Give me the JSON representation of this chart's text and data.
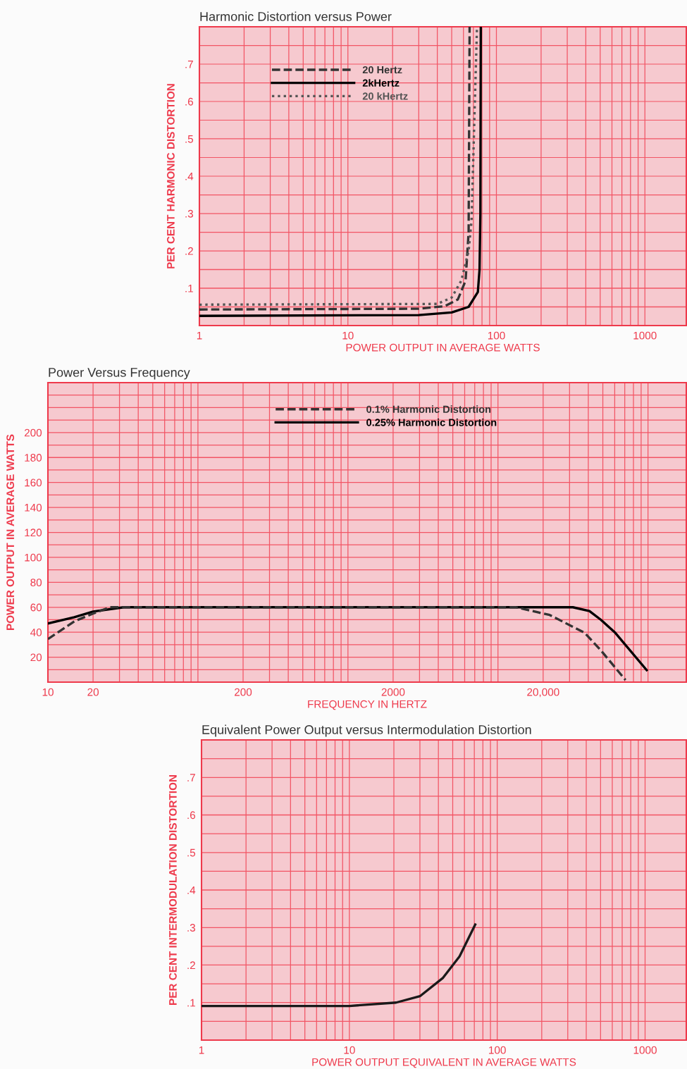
{
  "chart_data": [
    {
      "type": "line",
      "title": "Harmonic Distortion versus Power",
      "xlabel": "POWER OUTPUT IN AVERAGE WATTS",
      "ylabel": "PER CENT HARMONIC DISTORTION",
      "log": "x",
      "grid": true,
      "legend": "top left",
      "xlim": [
        1,
        1900
      ],
      "ylim": [
        0,
        0.8
      ],
      "xticks": [
        1,
        {
          "value": 2,
          "label": null
        },
        {
          "value": 3,
          "label": null
        },
        {
          "value": 4,
          "label": null
        },
        {
          "value": 5,
          "label": null
        },
        {
          "value": 6,
          "label": null
        },
        {
          "value": 7,
          "label": null
        },
        {
          "value": 8,
          "label": null
        },
        {
          "value": 9,
          "label": null
        },
        10,
        {
          "value": 20,
          "label": null
        },
        {
          "value": 30,
          "label": null
        },
        {
          "value": 40,
          "label": null
        },
        {
          "value": 50,
          "label": null
        },
        {
          "value": 60,
          "label": null
        },
        {
          "value": 70,
          "label": null
        },
        {
          "value": 80,
          "label": null
        },
        {
          "value": 90,
          "label": null
        },
        100,
        {
          "value": 200,
          "label": null
        },
        {
          "value": 300,
          "label": null
        },
        {
          "value": 400,
          "label": null
        },
        {
          "value": 500,
          "label": null
        },
        {
          "value": 600,
          "label": null
        },
        {
          "value": 700,
          "label": null
        },
        {
          "value": 800,
          "label": null
        },
        {
          "value": 900,
          "label": null
        },
        1000
      ],
      "yticks": [
        {
          "value": 0.05,
          "label": null
        },
        {
          "value": 0.1,
          "label": ".1"
        },
        {
          "value": 0.15,
          "label": null
        },
        {
          "value": 0.2,
          "label": ".2"
        },
        {
          "value": 0.25,
          "label": null
        },
        {
          "value": 0.3,
          "label": ".3"
        },
        {
          "value": 0.35,
          "label": null
        },
        {
          "value": 0.4,
          "label": ".4"
        },
        {
          "value": 0.45,
          "label": null
        },
        {
          "value": 0.5,
          "label": ".5"
        },
        {
          "value": 0.55,
          "label": null
        },
        {
          "value": 0.6,
          "label": ".6"
        },
        {
          "value": 0.65,
          "label": null
        },
        {
          "value": 0.7,
          "label": ".7"
        },
        {
          "value": 0.75,
          "label": null
        }
      ],
      "series": [
        {
          "name": "20 Hertz",
          "color": "#333333",
          "line_style": "dashed",
          "x": [
            1,
            30,
            45,
            55,
            62,
            65,
            66
          ],
          "values": [
            0.043,
            0.045,
            0.052,
            0.07,
            0.12,
            0.25,
            0.8
          ]
        },
        {
          "name": "2kHertz",
          "color": "#000000",
          "line_style": "solid",
          "x": [
            1,
            30,
            50,
            65,
            75,
            77,
            78,
            78.5
          ],
          "values": [
            0.026,
            0.028,
            0.035,
            0.05,
            0.09,
            0.15,
            0.3,
            0.8
          ]
        },
        {
          "name": "20 kHertz",
          "color": "#555555",
          "line_style": "dotted",
          "x": [
            1,
            40,
            50,
            58,
            65,
            68,
            74
          ],
          "values": [
            0.056,
            0.058,
            0.075,
            0.12,
            0.2,
            0.28,
            0.8
          ]
        }
      ]
    },
    {
      "type": "line",
      "title": "Power Versus Frequency",
      "xlabel": "FREQUENCY IN HERTZ",
      "ylabel": "POWER OUTPUT IN AVERAGE WATTS",
      "log": "x",
      "grid": true,
      "legend": "top",
      "xlim": [
        10,
        180000
      ],
      "ylim": [
        0,
        240
      ],
      "xticks": [
        10,
        20,
        {
          "value": 30,
          "label": null
        },
        {
          "value": 40,
          "label": null
        },
        {
          "value": 50,
          "label": null
        },
        {
          "value": 60,
          "label": null
        },
        {
          "value": 70,
          "label": null
        },
        {
          "value": 80,
          "label": null
        },
        {
          "value": 90,
          "label": null
        },
        {
          "value": 100,
          "label": null
        },
        200,
        {
          "value": 300,
          "label": null
        },
        {
          "value": 400,
          "label": null
        },
        {
          "value": 500,
          "label": null
        },
        {
          "value": 600,
          "label": null
        },
        {
          "value": 700,
          "label": null
        },
        {
          "value": 800,
          "label": null
        },
        {
          "value": 900,
          "label": null
        },
        {
          "value": 1000,
          "label": null
        },
        2000,
        {
          "value": 3000,
          "label": null
        },
        {
          "value": 4000,
          "label": null
        },
        {
          "value": 5000,
          "label": null
        },
        {
          "value": 6000,
          "label": null
        },
        {
          "value": 7000,
          "label": null
        },
        {
          "value": 8000,
          "label": null
        },
        {
          "value": 9000,
          "label": null
        },
        {
          "value": 10000,
          "label": null
        },
        {
          "value": 20000,
          "label": "20,000"
        },
        {
          "value": 30000,
          "label": null
        },
        {
          "value": 40000,
          "label": null
        },
        {
          "value": 50000,
          "label": null
        },
        {
          "value": 60000,
          "label": null
        },
        {
          "value": 70000,
          "label": null
        },
        {
          "value": 80000,
          "label": null
        },
        {
          "value": 90000,
          "label": null
        },
        {
          "value": 100000,
          "label": null
        }
      ],
      "yticks": [
        {
          "value": 10,
          "label": null
        },
        20,
        {
          "value": 30,
          "label": null
        },
        40,
        {
          "value": 50,
          "label": null
        },
        60,
        {
          "value": 70,
          "label": null
        },
        80,
        {
          "value": 90,
          "label": null
        },
        100,
        {
          "value": 110,
          "label": null
        },
        120,
        {
          "value": 130,
          "label": null
        },
        140,
        {
          "value": 150,
          "label": null
        },
        160,
        {
          "value": 170,
          "label": null
        },
        180,
        {
          "value": 190,
          "label": null
        },
        200,
        {
          "value": 210,
          "label": null
        },
        {
          "value": 220,
          "label": null
        },
        {
          "value": 230,
          "label": null
        }
      ],
      "series": [
        {
          "name": "0.1% Harmonic Distortion",
          "color": "#333333",
          "line_style": "dashed",
          "x": [
            10,
            15,
            20,
            26,
            13200,
            22100,
            37800,
            48500,
            70800
          ],
          "values": [
            34.5,
            48.7,
            55,
            60,
            60,
            53.8,
            39.6,
            25.5,
            1.7
          ]
        },
        {
          "name": "0.25% Harmonic Distortion",
          "color": "#000000",
          "line_style": "solid",
          "x": [
            10,
            15,
            20,
            32,
            31600,
            40700,
            48500,
            60000,
            98000
          ],
          "values": [
            47,
            52,
            56.5,
            60,
            60,
            57,
            50,
            40,
            9.6
          ]
        }
      ]
    },
    {
      "type": "line",
      "title": "Equivalent Power Output versus Intermodulation Distortion",
      "xlabel": "POWER OUTPUT EQUIVALENT IN AVERAGE WATTS",
      "ylabel": "PER CENT INTERMODULATION DISTORTION",
      "log": "x",
      "grid": true,
      "xlim": [
        1,
        1900
      ],
      "ylim": [
        0,
        0.8
      ],
      "xticks": [
        1,
        {
          "value": 2,
          "label": null
        },
        {
          "value": 3,
          "label": null
        },
        {
          "value": 4,
          "label": null
        },
        {
          "value": 5,
          "label": null
        },
        {
          "value": 6,
          "label": null
        },
        {
          "value": 7,
          "label": null
        },
        {
          "value": 8,
          "label": null
        },
        {
          "value": 9,
          "label": null
        },
        10,
        {
          "value": 20,
          "label": null
        },
        {
          "value": 30,
          "label": null
        },
        {
          "value": 40,
          "label": null
        },
        {
          "value": 50,
          "label": null
        },
        {
          "value": 60,
          "label": null
        },
        {
          "value": 70,
          "label": null
        },
        {
          "value": 80,
          "label": null
        },
        {
          "value": 90,
          "label": null
        },
        100,
        {
          "value": 200,
          "label": null
        },
        {
          "value": 300,
          "label": null
        },
        {
          "value": 400,
          "label": null
        },
        {
          "value": 500,
          "label": null
        },
        {
          "value": 600,
          "label": null
        },
        {
          "value": 700,
          "label": null
        },
        {
          "value": 800,
          "label": null
        },
        {
          "value": 900,
          "label": null
        },
        1000
      ],
      "yticks": [
        {
          "value": 0.05,
          "label": null
        },
        {
          "value": 0.1,
          "label": ".1"
        },
        {
          "value": 0.15,
          "label": null
        },
        {
          "value": 0.2,
          "label": ".2"
        },
        {
          "value": 0.25,
          "label": null
        },
        {
          "value": 0.3,
          "label": ".3"
        },
        {
          "value": 0.35,
          "label": null
        },
        {
          "value": 0.4,
          "label": ".4"
        },
        {
          "value": 0.45,
          "label": null
        },
        {
          "value": 0.5,
          "label": ".5"
        },
        {
          "value": 0.55,
          "label": null
        },
        {
          "value": 0.6,
          "label": ".6"
        },
        {
          "value": 0.65,
          "label": null
        },
        {
          "value": 0.7,
          "label": ".7"
        },
        {
          "value": 0.75,
          "label": null
        }
      ],
      "series": [
        {
          "color": "#1a1a1a",
          "line_style": "solid",
          "x": [
            1,
            10,
            20.7,
            30,
            43,
            55.6,
            71
          ],
          "values": [
            0.091,
            0.091,
            0.1,
            0.117,
            0.166,
            0.223,
            0.308
          ]
        }
      ]
    }
  ]
}
